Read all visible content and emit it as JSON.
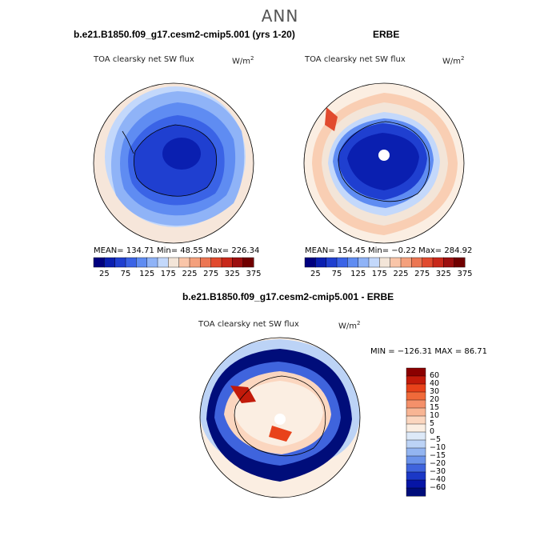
{
  "main_title": "ANN",
  "panels": {
    "model": {
      "case_title": "b.e21.B1850.f09_g17.cesm2-cmip5.001 (yrs 1-20)",
      "variable": "TOA clearsky net SW flux",
      "units": "W/m",
      "units_exp": "2",
      "stats": {
        "mean": "134.71",
        "min": "48.55",
        "max": "226.34"
      },
      "stats_text": "MEAN= 134.71   Min=   48.55   Max= 226.34"
    },
    "obs": {
      "case_title": "ERBE",
      "variable": "TOA clearsky net SW flux",
      "units": "W/m",
      "units_exp": "2",
      "stats": {
        "mean": "154.45",
        "min": "-0.22",
        "max": "284.92"
      },
      "stats_text": "MEAN= 154.45   Min=   −0.22   Max= 284.92"
    },
    "diff": {
      "case_title": "b.e21.B1850.f09_g17.cesm2-cmip5.001 - ERBE",
      "variable": "TOA clearsky net SW flux",
      "units": "W/m",
      "units_exp": "2",
      "minmax_text": "MIN = −126.31  MAX =  86.71"
    }
  },
  "colorbar_abs": {
    "labels": [
      "25",
      "75",
      "125",
      "175",
      "225",
      "275",
      "325",
      "375"
    ],
    "colors": [
      "#00007f",
      "#0a1fb0",
      "#1f3fd0",
      "#3a63e6",
      "#5f8cf2",
      "#8fb3f7",
      "#c3d8fb",
      "#f3e5d8",
      "#f9c5a8",
      "#f4a07c",
      "#ec7652",
      "#e14a2e",
      "#c8281a",
      "#9c0f0f",
      "#700000"
    ]
  },
  "colorbar_diff": {
    "labels": [
      "60",
      "40",
      "30",
      "20",
      "15",
      "10",
      "5",
      "0",
      "−5",
      "−10",
      "−15",
      "−20",
      "−30",
      "−40",
      "−60"
    ],
    "colors": [
      "#8b0000",
      "#c21a0a",
      "#e8421a",
      "#f06a3a",
      "#f4906a",
      "#f8b594",
      "#fbd6bf",
      "#fbeee2",
      "#dde9f8",
      "#bcd3f6",
      "#93b5f1",
      "#6b93ea",
      "#3f64dd",
      "#1b38c6",
      "#0615a6",
      "#000d7a"
    ]
  }
}
